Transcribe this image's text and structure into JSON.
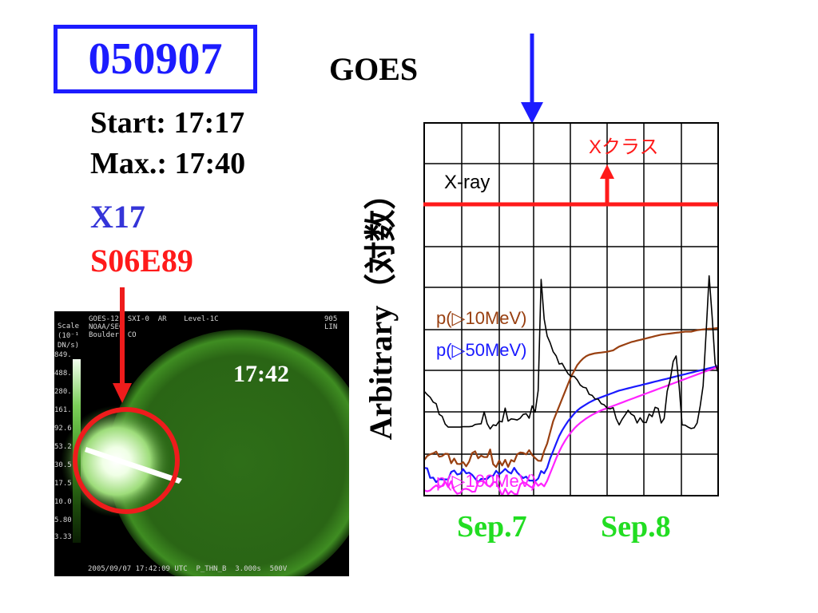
{
  "event": {
    "date": "050907",
    "start": "Start: 17:17",
    "max": "Max.: 17:40",
    "xclass": "X17",
    "location": "S06E89"
  },
  "sxi_image": {
    "time_label": "17:42",
    "header_left": "GOES-12  SXI-0  AR    Level-1C",
    "header_left2": "NOAA/SEC",
    "header_left3": "Boulder, CO",
    "header_right": "905",
    "header_right2": "LIN",
    "scale_title": "Scale",
    "scale_unit1": "(10⁻¹",
    "scale_unit2": "DN/s)",
    "scale_ticks": [
      "849.",
      "488.",
      "280.",
      "161.",
      "92.6",
      "53.2",
      "30.5",
      "17.5",
      "10.0",
      "5.80",
      "3.33"
    ],
    "footer": "2005/09/07 17:42:09 UTC  P_THN_B  3.000s  500V"
  },
  "chart_data": {
    "type": "line",
    "title": "GOES",
    "ylabel": "Arbitrary（対数）",
    "x_tick_labels": [
      "Sep.7",
      "Sep.8"
    ],
    "grid": true,
    "threshold_label": "Xクラス",
    "series": [
      {
        "name": "X-ray",
        "color": "#000000",
        "y": [
          0.72,
          0.729,
          0.736,
          0.749,
          0.753,
          0.782,
          0.787,
          0.808,
          0.816,
          0.816,
          0.816,
          0.816,
          0.816,
          0.815,
          0.815,
          0.815,
          0.814,
          0.809,
          0.808,
          0.807,
          0.775,
          0.807,
          0.821,
          0.81,
          0.812,
          0.8,
          0.802,
          0.765,
          0.8,
          0.794,
          0.795,
          0.797,
          0.792,
          0.782,
          0.78,
          0.792,
          0.759,
          0.776,
          0.718,
          0.42,
          0.526,
          0.572,
          0.59,
          0.614,
          0.625,
          0.647,
          0.645,
          0.66,
          0.673,
          0.68,
          0.68,
          0.689,
          0.703,
          0.709,
          0.711,
          0.728,
          0.731,
          0.741,
          0.741,
          0.753,
          0.756,
          0.765,
          0.767,
          0.764,
          0.793,
          0.81,
          0.795,
          0.783,
          0.771,
          0.781,
          0.786,
          0.805,
          0.791,
          0.803,
          0.804,
          0.781,
          0.788,
          0.763,
          0.766,
          0.805,
          0.793,
          0.72,
          0.69,
          0.64,
          0.625,
          0.707,
          0.81,
          0.811,
          0.816,
          0.82,
          0.818,
          0.805,
          0.76,
          0.705,
          0.56,
          0.41,
          0.52,
          0.645,
          0.67
        ]
      },
      {
        "name": "p(▷10MeV)",
        "color": "#994011",
        "y": [
          0.9,
          0.9,
          0.9,
          0.9,
          0.9,
          0.9,
          0.9,
          0.9,
          0.9,
          0.9,
          0.9,
          0.9,
          0.9,
          0.9,
          0.9,
          0.9,
          0.9,
          0.9,
          0.9,
          0.9,
          0.9,
          0.9,
          0.9,
          0.9,
          0.9,
          0.9,
          0.9,
          0.9,
          0.9,
          0.9,
          0.9,
          0.9,
          0.9,
          0.9,
          0.9,
          0.9,
          0.9,
          0.9,
          0.9,
          0.9,
          0.88,
          0.86,
          0.83,
          0.8,
          0.78,
          0.76,
          0.74,
          0.72,
          0.7,
          0.68,
          0.665,
          0.65,
          0.64,
          0.632,
          0.626,
          0.622,
          0.62,
          0.618,
          0.617,
          0.616,
          0.615,
          0.614,
          0.612,
          0.61,
          0.605,
          0.6,
          0.597,
          0.594,
          0.591,
          0.588,
          0.586,
          0.584,
          0.582,
          0.58,
          0.578,
          0.576,
          0.574,
          0.572,
          0.57,
          0.568,
          0.567,
          0.566,
          0.565,
          0.564,
          0.563,
          0.562,
          0.561,
          0.56,
          0.56,
          0.56,
          0.558,
          0.556,
          0.555,
          0.554,
          0.553,
          0.552,
          0.552,
          0.551,
          0.55
        ]
      },
      {
        "name": "p(▷50MeV)",
        "color": "#1a1aff",
        "y": [
          0.945,
          0.945,
          0.945,
          0.945,
          0.945,
          0.945,
          0.945,
          0.945,
          0.945,
          0.945,
          0.945,
          0.945,
          0.945,
          0.945,
          0.945,
          0.945,
          0.945,
          0.945,
          0.945,
          0.945,
          0.945,
          0.945,
          0.945,
          0.945,
          0.945,
          0.945,
          0.945,
          0.945,
          0.945,
          0.945,
          0.945,
          0.945,
          0.945,
          0.945,
          0.945,
          0.945,
          0.945,
          0.945,
          0.945,
          0.945,
          0.94,
          0.925,
          0.9,
          0.88,
          0.86,
          0.84,
          0.825,
          0.812,
          0.8,
          0.79,
          0.78,
          0.772,
          0.765,
          0.76,
          0.755,
          0.75,
          0.746,
          0.742,
          0.739,
          0.736,
          0.733,
          0.73,
          0.727,
          0.724,
          0.721,
          0.718,
          0.716,
          0.714,
          0.712,
          0.71,
          0.708,
          0.706,
          0.704,
          0.702,
          0.7,
          0.698,
          0.696,
          0.694,
          0.692,
          0.69,
          0.688,
          0.686,
          0.684,
          0.682,
          0.68,
          0.678,
          0.676,
          0.674,
          0.672,
          0.67,
          0.668,
          0.666,
          0.664,
          0.662,
          0.66,
          0.658,
          0.656,
          0.654,
          0.652
        ]
      },
      {
        "name": "p(▷100MeV)",
        "color": "#ff22ff",
        "y": [
          0.98,
          0.98,
          0.98,
          0.98,
          0.98,
          0.98,
          0.98,
          0.98,
          0.98,
          0.98,
          0.98,
          0.98,
          0.98,
          0.98,
          0.98,
          0.98,
          0.98,
          0.98,
          0.98,
          0.98,
          0.98,
          0.98,
          0.98,
          0.98,
          0.98,
          0.98,
          0.98,
          0.98,
          0.98,
          0.98,
          0.98,
          0.98,
          0.98,
          0.98,
          0.98,
          0.98,
          0.98,
          0.98,
          0.98,
          0.98,
          0.975,
          0.96,
          0.94,
          0.92,
          0.9,
          0.882,
          0.866,
          0.852,
          0.84,
          0.83,
          0.82,
          0.812,
          0.805,
          0.799,
          0.793,
          0.788,
          0.783,
          0.779,
          0.775,
          0.771,
          0.768,
          0.765,
          0.762,
          0.759,
          0.756,
          0.753,
          0.75,
          0.747,
          0.744,
          0.741,
          0.738,
          0.735,
          0.732,
          0.729,
          0.726,
          0.723,
          0.72,
          0.717,
          0.714,
          0.711,
          0.708,
          0.705,
          0.702,
          0.699,
          0.696,
          0.693,
          0.69,
          0.687,
          0.684,
          0.681,
          0.678,
          0.675,
          0.672,
          0.669,
          0.666,
          0.663,
          0.66,
          0.657,
          0.654
        ]
      }
    ]
  }
}
